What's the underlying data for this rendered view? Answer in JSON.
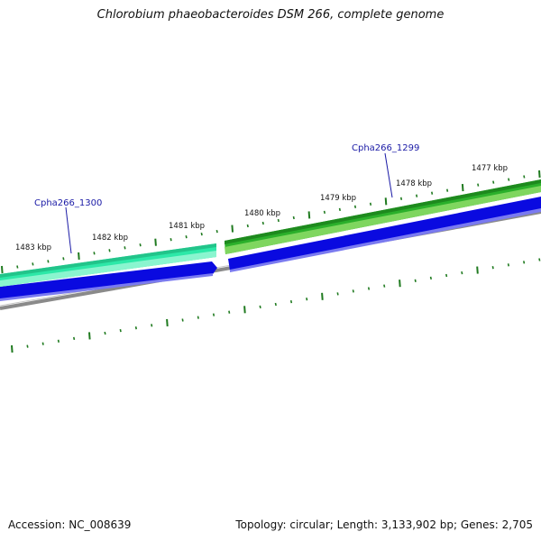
{
  "title": "Chlorobium phaeobacteroides DSM 266, complete genome",
  "footer": {
    "accession": "Accession: NC_008639",
    "topology": "Topology: circular; Length: 3,133,902 bp; Genes: 2,705"
  },
  "colors": {
    "forward_gene_1300": "#2de8a8",
    "forward_gene_1299": "#2bb02b",
    "forward_gene_1299_light": "#7fd65f",
    "reverse_strand": "#0a0ae0",
    "backbone": "#808080",
    "tick": "#1f7a1f",
    "label": "#1a1aa6"
  },
  "scale_labels": [
    "1483 kbp",
    "1482 kbp",
    "1481 kbp",
    "1480 kbp",
    "1479 kbp",
    "1478 kbp",
    "1477 kbp"
  ],
  "genes": [
    {
      "name": "Cpha266_1300",
      "strand": "forward",
      "color": "#2de8a8"
    },
    {
      "name": "Cpha266_1299",
      "strand": "forward",
      "color": "#2bb02b"
    },
    {
      "name": "",
      "strand": "reverse",
      "color": "#0a0ae0"
    }
  ]
}
